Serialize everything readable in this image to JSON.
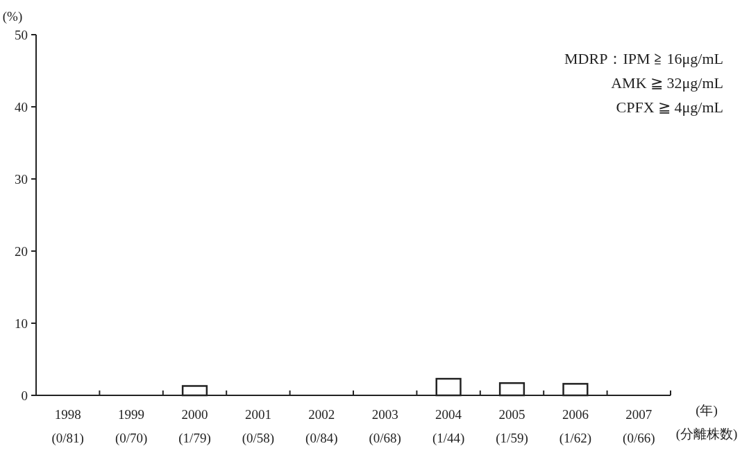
{
  "chart_data": {
    "type": "bar",
    "ylabel": "(%)",
    "xlabel": "(年)\n(分離株数)",
    "categories": [
      "1998\n(0/81)",
      "1999\n(0/70)",
      "2000\n(1/79)",
      "2001\n(0/58)",
      "2002\n(0/84)",
      "2003\n(0/68)",
      "2004\n(1/44)",
      "2005\n(1/59)",
      "2006\n(1/62)",
      "2007\n(0/66)"
    ],
    "values": [
      0,
      0,
      1.3,
      0,
      0,
      0,
      2.3,
      1.7,
      1.6,
      0
    ],
    "color": "#ffffff",
    "ylim": [
      0,
      50
    ],
    "yticks": [
      0,
      10,
      20,
      30,
      40,
      50
    ],
    "annotations": [
      "MDRP：IPM ≧ 16μg/mL",
      "AMK ≧ 32μg/mL",
      "CPFX ≧ 4μg/mL"
    ]
  }
}
